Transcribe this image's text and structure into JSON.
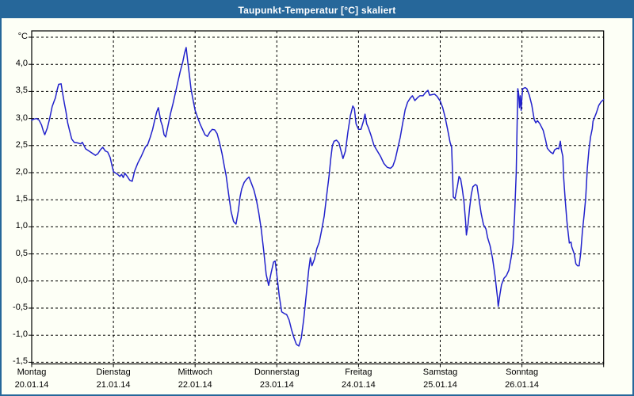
{
  "window": {
    "title": "Taupunkt-Temperatur [°C] skaliert"
  },
  "colors": {
    "header_bg": "#26679A",
    "window_border": "#26679A",
    "background": "#FDFFF6",
    "frame": "#000000",
    "grid": "#000000",
    "text": "#000000",
    "title_text": "#FFFFFF",
    "line": "#2222CC"
  },
  "chart_data": {
    "type": "line",
    "title": "Taupunkt-Temperatur [°C] skaliert",
    "legend_position": "none",
    "y_axis": {
      "unit": "°C",
      "min": -1.5,
      "max": 4.5,
      "grid_step": 0.5,
      "grid": "dashed",
      "ticks": [
        {
          "value": 4.0,
          "label": "4,0"
        },
        {
          "value": 3.5,
          "label": "3,5"
        },
        {
          "value": 3.0,
          "label": "3,0"
        },
        {
          "value": 2.5,
          "label": "2,5"
        },
        {
          "value": 2.0,
          "label": "2,0"
        },
        {
          "value": 1.5,
          "label": "1,5"
        },
        {
          "value": 1.0,
          "label": "1,0"
        },
        {
          "value": 0.5,
          "label": "0,5"
        },
        {
          "value": 0.0,
          "label": "0,0"
        },
        {
          "value": -0.5,
          "label": "-0,5"
        },
        {
          "value": -1.0,
          "label": "-1,0"
        },
        {
          "value": -1.5,
          "label": "-1,5"
        }
      ]
    },
    "x_axis": {
      "range_days": 7,
      "grid": "dashed",
      "days": [
        {
          "name": "Montag",
          "date": "20.01.14"
        },
        {
          "name": "Dienstag",
          "date": "21.01.14"
        },
        {
          "name": "Mittwoch",
          "date": "22.01.14"
        },
        {
          "name": "Donnerstag",
          "date": "23.01.14"
        },
        {
          "name": "Freitag",
          "date": "24.01.14"
        },
        {
          "name": "Samstag",
          "date": "25.01.14"
        },
        {
          "name": "Sonntag",
          "date": "26.01.14"
        }
      ]
    },
    "series": [
      {
        "name": "Taupunkt-Temperatur",
        "color": "#2222CC",
        "x_unit": "days_from_start",
        "points": [
          [
            0,
            2.97
          ],
          [
            0.03,
            2.99
          ],
          [
            0.06,
            3.0
          ],
          [
            0.09,
            2.97
          ],
          [
            0.12,
            2.88
          ],
          [
            0.14,
            2.78
          ],
          [
            0.16,
            2.7
          ],
          [
            0.19,
            2.82
          ],
          [
            0.22,
            3.0
          ],
          [
            0.25,
            3.22
          ],
          [
            0.27,
            3.3
          ],
          [
            0.29,
            3.38
          ],
          [
            0.31,
            3.52
          ],
          [
            0.33,
            3.63
          ],
          [
            0.36,
            3.64
          ],
          [
            0.38,
            3.45
          ],
          [
            0.4,
            3.28
          ],
          [
            0.42,
            3.12
          ],
          [
            0.44,
            2.92
          ],
          [
            0.46,
            2.8
          ],
          [
            0.49,
            2.62
          ],
          [
            0.52,
            2.56
          ],
          [
            0.56,
            2.55
          ],
          [
            0.6,
            2.53
          ],
          [
            0.62,
            2.56
          ],
          [
            0.64,
            2.5
          ],
          [
            0.66,
            2.44
          ],
          [
            0.7,
            2.4
          ],
          [
            0.74,
            2.36
          ],
          [
            0.78,
            2.32
          ],
          [
            0.81,
            2.35
          ],
          [
            0.84,
            2.42
          ],
          [
            0.87,
            2.47
          ],
          [
            0.9,
            2.4
          ],
          [
            0.93,
            2.38
          ],
          [
            0.96,
            2.28
          ],
          [
            0.98,
            2.15
          ],
          [
            1,
            2.02
          ],
          [
            1.02,
            2.0
          ],
          [
            1.05,
            1.97
          ],
          [
            1.08,
            1.93
          ],
          [
            1.1,
            1.97
          ],
          [
            1.12,
            1.91
          ],
          [
            1.14,
            1.99
          ],
          [
            1.17,
            1.93
          ],
          [
            1.2,
            1.86
          ],
          [
            1.23,
            1.84
          ],
          [
            1.26,
            2.03
          ],
          [
            1.3,
            2.18
          ],
          [
            1.34,
            2.3
          ],
          [
            1.39,
            2.47
          ],
          [
            1.42,
            2.52
          ],
          [
            1.45,
            2.65
          ],
          [
            1.48,
            2.8
          ],
          [
            1.51,
            3.0
          ],
          [
            1.53,
            3.12
          ],
          [
            1.55,
            3.2
          ],
          [
            1.58,
            2.95
          ],
          [
            1.6,
            2.86
          ],
          [
            1.62,
            2.7
          ],
          [
            1.64,
            2.66
          ],
          [
            1.67,
            2.88
          ],
          [
            1.7,
            3.1
          ],
          [
            1.73,
            3.28
          ],
          [
            1.77,
            3.55
          ],
          [
            1.79,
            3.68
          ],
          [
            1.82,
            3.88
          ],
          [
            1.85,
            4.05
          ],
          [
            1.87,
            4.2
          ],
          [
            1.89,
            4.31
          ],
          [
            1.91,
            4.05
          ],
          [
            1.93,
            3.8
          ],
          [
            1.95,
            3.55
          ],
          [
            1.97,
            3.38
          ],
          [
            2,
            3.15
          ],
          [
            2.03,
            3.02
          ],
          [
            2.06,
            2.9
          ],
          [
            2.09,
            2.8
          ],
          [
            2.12,
            2.7
          ],
          [
            2.15,
            2.67
          ],
          [
            2.18,
            2.75
          ],
          [
            2.21,
            2.8
          ],
          [
            2.24,
            2.79
          ],
          [
            2.27,
            2.72
          ],
          [
            2.3,
            2.55
          ],
          [
            2.33,
            2.35
          ],
          [
            2.36,
            2.1
          ],
          [
            2.38,
            1.94
          ],
          [
            2.41,
            1.6
          ],
          [
            2.44,
            1.28
          ],
          [
            2.47,
            1.1
          ],
          [
            2.5,
            1.05
          ],
          [
            2.53,
            1.3
          ],
          [
            2.55,
            1.55
          ],
          [
            2.57,
            1.7
          ],
          [
            2.6,
            1.82
          ],
          [
            2.63,
            1.88
          ],
          [
            2.66,
            1.92
          ],
          [
            2.69,
            1.8
          ],
          [
            2.72,
            1.68
          ],
          [
            2.75,
            1.5
          ],
          [
            2.78,
            1.25
          ],
          [
            2.81,
            0.95
          ],
          [
            2.84,
            0.55
          ],
          [
            2.87,
            0.12
          ],
          [
            2.9,
            -0.08
          ],
          [
            2.93,
            0.15
          ],
          [
            2.96,
            0.35
          ],
          [
            2.98,
            0.37
          ],
          [
            3,
            0.12
          ],
          [
            3.03,
            -0.28
          ],
          [
            3.06,
            -0.57
          ],
          [
            3.09,
            -0.6
          ],
          [
            3.12,
            -0.62
          ],
          [
            3.15,
            -0.72
          ],
          [
            3.18,
            -0.9
          ],
          [
            3.21,
            -1.05
          ],
          [
            3.24,
            -1.17
          ],
          [
            3.27,
            -1.2
          ],
          [
            3.3,
            -1.05
          ],
          [
            3.33,
            -0.7
          ],
          [
            3.36,
            -0.26
          ],
          [
            3.39,
            0.2
          ],
          [
            3.41,
            0.43
          ],
          [
            3.43,
            0.28
          ],
          [
            3.46,
            0.4
          ],
          [
            3.49,
            0.6
          ],
          [
            3.52,
            0.72
          ],
          [
            3.55,
            0.95
          ],
          [
            3.58,
            1.2
          ],
          [
            3.61,
            1.58
          ],
          [
            3.64,
            1.95
          ],
          [
            3.66,
            2.25
          ],
          [
            3.68,
            2.5
          ],
          [
            3.7,
            2.58
          ],
          [
            3.73,
            2.6
          ],
          [
            3.76,
            2.55
          ],
          [
            3.79,
            2.38
          ],
          [
            3.81,
            2.26
          ],
          [
            3.84,
            2.4
          ],
          [
            3.87,
            2.75
          ],
          [
            3.9,
            3.05
          ],
          [
            3.93,
            3.23
          ],
          [
            3.95,
            3.18
          ],
          [
            3.97,
            2.9
          ],
          [
            4,
            2.8
          ],
          [
            4.03,
            2.8
          ],
          [
            4.06,
            2.95
          ],
          [
            4.08,
            3.08
          ],
          [
            4.1,
            2.9
          ],
          [
            4.12,
            2.83
          ],
          [
            4.15,
            2.7
          ],
          [
            4.19,
            2.5
          ],
          [
            4.23,
            2.4
          ],
          [
            4.27,
            2.3
          ],
          [
            4.31,
            2.17
          ],
          [
            4.35,
            2.1
          ],
          [
            4.39,
            2.08
          ],
          [
            4.42,
            2.12
          ],
          [
            4.45,
            2.25
          ],
          [
            4.48,
            2.45
          ],
          [
            4.51,
            2.65
          ],
          [
            4.54,
            2.91
          ],
          [
            4.57,
            3.16
          ],
          [
            4.6,
            3.3
          ],
          [
            4.63,
            3.37
          ],
          [
            4.66,
            3.42
          ],
          [
            4.69,
            3.33
          ],
          [
            4.72,
            3.38
          ],
          [
            4.75,
            3.42
          ],
          [
            4.79,
            3.42
          ],
          [
            4.82,
            3.48
          ],
          [
            4.85,
            3.52
          ],
          [
            4.87,
            3.43
          ],
          [
            4.9,
            3.44
          ],
          [
            4.93,
            3.45
          ],
          [
            4.96,
            3.41
          ],
          [
            5,
            3.32
          ],
          [
            5.03,
            3.2
          ],
          [
            5.06,
            3.02
          ],
          [
            5.09,
            2.8
          ],
          [
            5.12,
            2.56
          ],
          [
            5.14,
            2.47
          ],
          [
            5.15,
            2.0
          ],
          [
            5.16,
            1.55
          ],
          [
            5.18,
            1.52
          ],
          [
            5.21,
            1.75
          ],
          [
            5.23,
            1.93
          ],
          [
            5.25,
            1.88
          ],
          [
            5.27,
            1.7
          ],
          [
            5.29,
            1.47
          ],
          [
            5.31,
            1.1
          ],
          [
            5.32,
            0.85
          ],
          [
            5.34,
            1.05
          ],
          [
            5.36,
            1.35
          ],
          [
            5.38,
            1.6
          ],
          [
            5.4,
            1.74
          ],
          [
            5.43,
            1.78
          ],
          [
            5.45,
            1.76
          ],
          [
            5.47,
            1.55
          ],
          [
            5.5,
            1.25
          ],
          [
            5.53,
            1.04
          ],
          [
            5.56,
            0.96
          ],
          [
            5.58,
            0.8
          ],
          [
            5.61,
            0.65
          ],
          [
            5.64,
            0.42
          ],
          [
            5.67,
            0.1
          ],
          [
            5.7,
            -0.3
          ],
          [
            5.71,
            -0.47
          ],
          [
            5.73,
            -0.25
          ],
          [
            5.75,
            -0.07
          ],
          [
            5.78,
            0.05
          ],
          [
            5.81,
            0.1
          ],
          [
            5.84,
            0.2
          ],
          [
            5.87,
            0.45
          ],
          [
            5.89,
            0.68
          ],
          [
            5.91,
            1.2
          ],
          [
            5.93,
            2.0
          ],
          [
            5.945,
            3.2
          ],
          [
            5.95,
            3.55
          ],
          [
            5.96,
            3.45
          ],
          [
            5.97,
            3.2
          ],
          [
            5.98,
            3.42
          ],
          [
            5.99,
            3.15
          ],
          [
            6,
            3.4
          ],
          [
            6.01,
            3.55
          ],
          [
            6.04,
            3.57
          ],
          [
            6.06,
            3.55
          ],
          [
            6.09,
            3.43
          ],
          [
            6.12,
            3.25
          ],
          [
            6.15,
            2.98
          ],
          [
            6.17,
            2.92
          ],
          [
            6.19,
            2.96
          ],
          [
            6.22,
            2.9
          ],
          [
            6.26,
            2.78
          ],
          [
            6.29,
            2.6
          ],
          [
            6.31,
            2.45
          ],
          [
            6.35,
            2.38
          ],
          [
            6.38,
            2.35
          ],
          [
            6.4,
            2.42
          ],
          [
            6.43,
            2.45
          ],
          [
            6.45,
            2.44
          ],
          [
            6.47,
            2.58
          ],
          [
            6.48,
            2.44
          ],
          [
            6.5,
            2.3
          ],
          [
            6.51,
            1.92
          ],
          [
            6.53,
            1.5
          ],
          [
            6.55,
            1.11
          ],
          [
            6.56,
            0.97
          ],
          [
            6.58,
            0.7
          ],
          [
            6.6,
            0.72
          ],
          [
            6.61,
            0.63
          ],
          [
            6.64,
            0.5
          ],
          [
            6.66,
            0.32
          ],
          [
            6.68,
            0.28
          ],
          [
            6.7,
            0.28
          ],
          [
            6.72,
            0.52
          ],
          [
            6.74,
            0.92
          ],
          [
            6.76,
            1.21
          ],
          [
            6.78,
            1.52
          ],
          [
            6.8,
            2.08
          ],
          [
            6.82,
            2.42
          ],
          [
            6.84,
            2.66
          ],
          [
            6.86,
            2.81
          ],
          [
            6.87,
            2.95
          ],
          [
            6.91,
            3.1
          ],
          [
            6.94,
            3.24
          ],
          [
            6.97,
            3.31
          ],
          [
            7,
            3.35
          ]
        ]
      }
    ]
  }
}
